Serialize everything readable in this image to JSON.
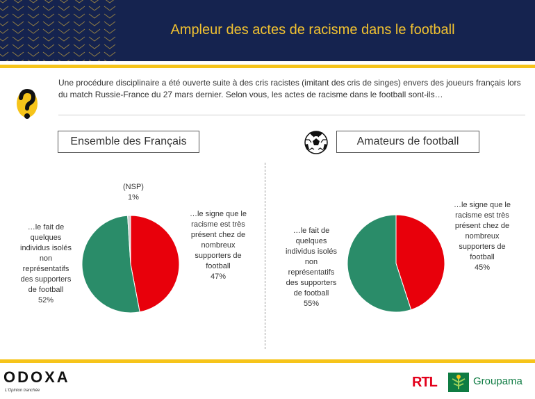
{
  "header": {
    "title": "Ampleur des actes de racisme dans le football"
  },
  "question": {
    "text": "Une procédure disciplinaire a été ouverte suite à des cris racistes (imitant des cris de singes) envers des joueurs français lors du match Russie-France du 27 mars dernier. Selon vous, les actes de racisme dans le football sont-ils…"
  },
  "segments": {
    "left": "Ensemble des Français",
    "right": "Amateurs de football"
  },
  "colors": {
    "red": "#e8000b",
    "green": "#2a8c69",
    "grey": "#d0d0d0",
    "navy": "#15234f",
    "gold": "#f6c41a"
  },
  "chart_data": [
    {
      "type": "pie",
      "categories": [
        "…le signe que le racisme est très présent chez de nombreux supporters de football",
        "…le fait de quelques individus isolés non représentatifs des supporters de football",
        "(NSP)"
      ],
      "values": [
        47,
        52,
        1
      ],
      "labels": {
        "red_text": "…le signe que le\nracisme est très\nprésent chez de\nnombreux\nsupporters de\nfootball",
        "red_value": "47%",
        "green_text": "…le fait de\nquelques\nindividus isolés\nnon\nreprésentatifs\ndes supporters\nde football",
        "green_value": "52%",
        "nsp_text": "(NSP)",
        "nsp_value": "1%"
      }
    },
    {
      "type": "pie",
      "categories": [
        "…le signe que le racisme est très présent chez de nombreux supporters de football",
        "…le fait de quelques individus isolés non représentatifs des supporters de football"
      ],
      "values": [
        45,
        55
      ],
      "labels": {
        "red_text": "…le signe que le\nracisme est très\nprésent chez de\nnombreux\nsupporters de\nfootball",
        "red_value": "45%",
        "green_text": "…le fait de\nquelques\nindividus isolés\nnon\nreprésentatifs\ndes supporters\nde football",
        "green_value": "55%"
      }
    }
  ],
  "footer": {
    "odoxa": "ODOXA",
    "odoxa_tagline": "L'Opinion tranchée",
    "rtl": "RTL",
    "groupama": "Groupama"
  }
}
